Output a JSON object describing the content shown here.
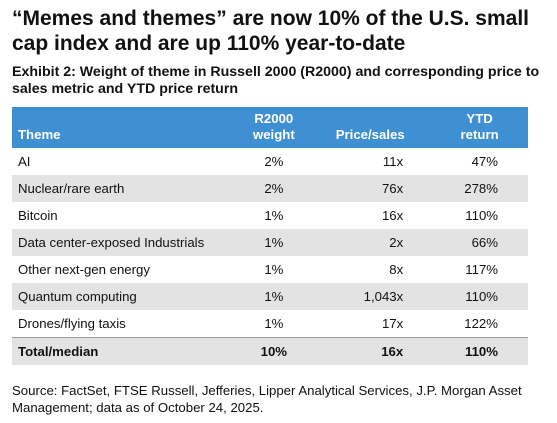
{
  "headline": "“Memes and themes” are now 10% of the U.S. small cap index and are up 110% year-to-date",
  "subtitle": "Exhibit 2: Weight of theme in Russell 2000 (R2000) and corresponding price to sales metric and YTD price return",
  "table": {
    "headers": {
      "theme": "Theme",
      "weight_line1": "R2000",
      "weight_line2": "weight",
      "price_sales": "Price/sales",
      "ytd_line1": "YTD",
      "ytd_line2": "return"
    },
    "rows": [
      {
        "theme": "AI",
        "weight": "2%",
        "price_sales": "11x",
        "ytd": "47%"
      },
      {
        "theme": "Nuclear/rare earth",
        "weight": "2%",
        "price_sales": "76x",
        "ytd": "278%"
      },
      {
        "theme": "Bitcoin",
        "weight": "1%",
        "price_sales": "16x",
        "ytd": "110%"
      },
      {
        "theme": "Data center-exposed Industrials",
        "weight": "1%",
        "price_sales": "2x",
        "ytd": "66%"
      },
      {
        "theme": "Other next-gen energy",
        "weight": "1%",
        "price_sales": "8x",
        "ytd": "117%"
      },
      {
        "theme": "Quantum computing",
        "weight": "1%",
        "price_sales": "1,043x",
        "ytd": "110%"
      },
      {
        "theme": "Drones/flying taxis",
        "weight": "1%",
        "price_sales": "17x",
        "ytd": "122%"
      }
    ],
    "total": {
      "theme": "Total/median",
      "weight": "10%",
      "price_sales": "16x",
      "ytd": "110%"
    }
  },
  "source": "Source: FactSet, FTSE Russell, Jefferies, Lipper Analytical Services, J.P. Morgan Asset Management; data as of October 24, 2025.",
  "colors": {
    "header_bg": "#3f8fd3",
    "shade_bg": "#e3e3e3"
  }
}
